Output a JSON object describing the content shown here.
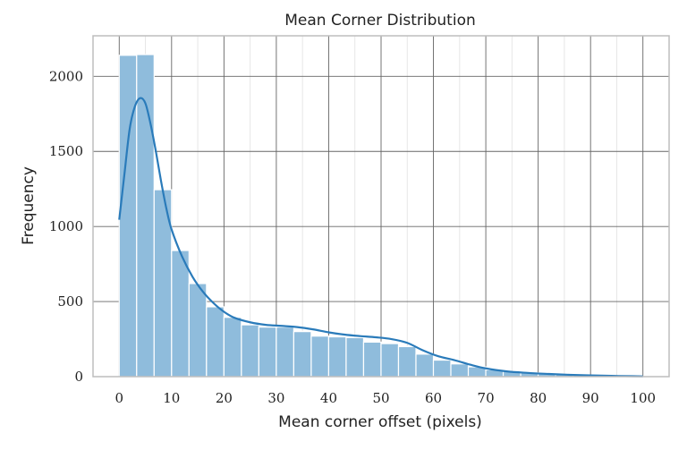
{
  "chart_data": {
    "type": "bar",
    "title": "Mean Corner Distribution",
    "xlabel": "Mean corner offset (pixels)",
    "ylabel": "Frequency",
    "xlim": [
      -5,
      105
    ],
    "ylim": [
      0,
      2270
    ],
    "x_ticks": [
      0,
      10,
      20,
      30,
      40,
      50,
      60,
      70,
      80,
      90,
      100
    ],
    "y_ticks": [
      0,
      500,
      1000,
      1500,
      2000
    ],
    "x_minor_grid": [
      5,
      15,
      25,
      35,
      45,
      55,
      65,
      75,
      85,
      95
    ],
    "grid": true,
    "bin_width": 3.333,
    "bin_start": 0,
    "series": [
      {
        "kind": "histogram",
        "color": "#8fbcdc",
        "values": [
          2140,
          2145,
          1245,
          840,
          620,
          465,
          395,
          345,
          330,
          330,
          300,
          270,
          265,
          260,
          230,
          220,
          200,
          150,
          110,
          85,
          65,
          45,
          35,
          25,
          20,
          15,
          10,
          8,
          5,
          3
        ]
      },
      {
        "kind": "kde",
        "color": "#2a7bba",
        "x": [
          0,
          1,
          2,
          3,
          4,
          5,
          6,
          7,
          8,
          9,
          10,
          12,
          14,
          16,
          18,
          20,
          22,
          25,
          28,
          31,
          34,
          37,
          40,
          43,
          46,
          49,
          52,
          55,
          58,
          61,
          64,
          67,
          70,
          74,
          78,
          82,
          86,
          90,
          94,
          98,
          100
        ],
        "y": [
          1045,
          1350,
          1650,
          1800,
          1855,
          1820,
          1680,
          1500,
          1300,
          1120,
          980,
          800,
          665,
          565,
          490,
          432,
          392,
          362,
          345,
          338,
          330,
          315,
          295,
          280,
          270,
          262,
          250,
          225,
          175,
          135,
          110,
          80,
          55,
          35,
          25,
          18,
          12,
          8,
          5,
          3,
          2
        ]
      }
    ]
  }
}
